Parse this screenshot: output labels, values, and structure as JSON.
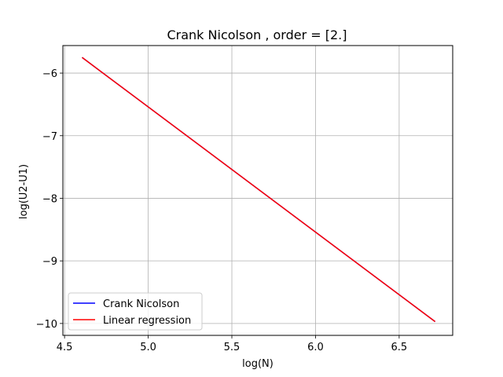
{
  "chart_data": {
    "type": "line",
    "title": "Crank Nicolson , order = [2.]",
    "xlabel": "log(N)",
    "ylabel": "log(U2-U1)",
    "xlim": [
      4.49,
      6.82
    ],
    "ylim": [
      -10.19,
      -5.56
    ],
    "xticks": [
      4.5,
      5.0,
      5.5,
      6.0,
      6.5
    ],
    "xtick_labels": [
      "4.5",
      "5.0",
      "5.5",
      "6.0",
      "6.5"
    ],
    "yticks": [
      -6,
      -7,
      -8,
      -9,
      -10
    ],
    "ytick_labels": [
      "−6",
      "−7",
      "−8",
      "−9",
      "−10"
    ],
    "grid": true,
    "legend_position": "lower-left",
    "series": [
      {
        "name": "Crank Nicolson",
        "color": "#0000ff",
        "x": [
          4.605,
          6.715
        ],
        "y": [
          -5.75,
          -9.97
        ]
      },
      {
        "name": "Linear regression",
        "color": "#ff0000",
        "x": [
          4.605,
          6.715
        ],
        "y": [
          -5.75,
          -9.97
        ]
      }
    ]
  }
}
